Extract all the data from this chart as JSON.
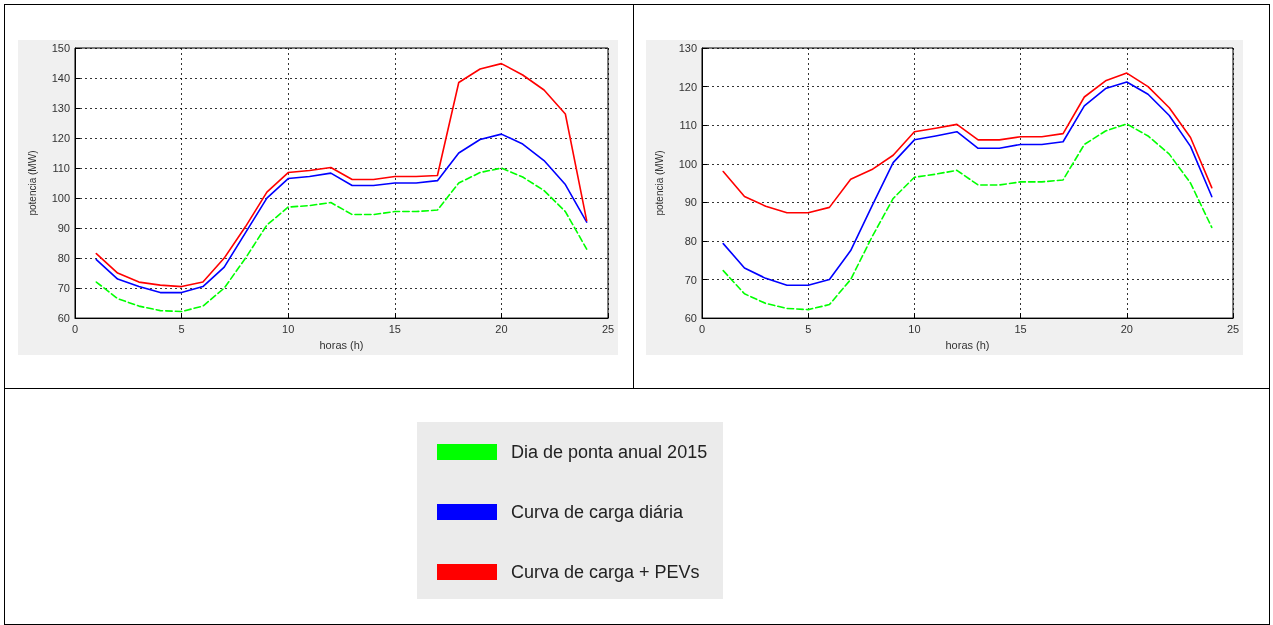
{
  "chart_data": [
    {
      "type": "line",
      "xlabel": "horas (h)",
      "ylabel": "potencia (MW)",
      "x": [
        1,
        2,
        3,
        4,
        5,
        6,
        7,
        8,
        9,
        10,
        11,
        12,
        13,
        14,
        15,
        16,
        17,
        18,
        19,
        20,
        21,
        22,
        23,
        24
      ],
      "xlim": [
        0,
        25
      ],
      "xticks": [
        0,
        5,
        10,
        15,
        20,
        25
      ],
      "ylim": [
        60,
        150
      ],
      "yticks": [
        60,
        70,
        80,
        90,
        100,
        110,
        120,
        130,
        140,
        150
      ],
      "grid": true,
      "legend": "bottom",
      "marker": "none",
      "series": [
        {
          "name": "Dia de ponta anual 2015",
          "color": "#00ff00",
          "line_style": "dashed",
          "values": [
            72,
            66.5,
            64,
            62.5,
            62.2,
            64,
            70,
            80,
            91,
            97,
            97.5,
            98.5,
            94.5,
            94.5,
            95.5,
            95.5,
            96,
            105,
            108.5,
            110,
            107,
            102.5,
            95.5,
            83
          ]
        },
        {
          "name": "Curva de carga diária",
          "color": "#0000ff",
          "line_style": "solid",
          "values": [
            79.5,
            73,
            70.5,
            68.5,
            68.5,
            70.5,
            77,
            88.5,
            100,
            106.5,
            107.2,
            108.3,
            104.2,
            104.2,
            105,
            105,
            105.8,
            115,
            119.5,
            121.3,
            118,
            112.5,
            104.5,
            92
          ]
        },
        {
          "name": "Curva de carga + PEVs",
          "color": "#ff0000",
          "line_style": "solid",
          "values": [
            81.5,
            75,
            72,
            71,
            70.5,
            72,
            80,
            90.5,
            102,
            108.5,
            109.2,
            110.2,
            106.2,
            106.2,
            107.2,
            107.2,
            107.5,
            138.5,
            143,
            144.8,
            141,
            136,
            128,
            92.5
          ]
        }
      ]
    },
    {
      "type": "line",
      "xlabel": "horas (h)",
      "ylabel": "potencia (MW)",
      "x": [
        1,
        2,
        3,
        4,
        5,
        6,
        7,
        8,
        9,
        10,
        11,
        12,
        13,
        14,
        15,
        16,
        17,
        18,
        19,
        20,
        21,
        22,
        23,
        24
      ],
      "xlim": [
        0,
        25
      ],
      "xticks": [
        0,
        5,
        10,
        15,
        20,
        25
      ],
      "ylim": [
        60,
        130
      ],
      "yticks": [
        60,
        70,
        80,
        90,
        100,
        110,
        120,
        130
      ],
      "grid": true,
      "marker": "none",
      "series": [
        {
          "color": "#00ff00",
          "line_style": "dashed",
          "values": [
            72.3,
            66.3,
            63.8,
            62.5,
            62.2,
            63.5,
            70,
            81,
            91,
            96.5,
            97.3,
            98.3,
            94.5,
            94.5,
            95.3,
            95.3,
            95.8,
            105,
            108.5,
            110.3,
            107.2,
            102.5,
            95,
            83.5
          ]
        },
        {
          "color": "#0000ff",
          "line_style": "solid",
          "values": [
            79.3,
            73,
            70.3,
            68.5,
            68.5,
            70,
            77.5,
            89,
            100.3,
            106.2,
            107.2,
            108.3,
            104,
            104,
            105,
            105,
            105.7,
            115,
            119.5,
            121.2,
            118,
            112.5,
            104.5,
            91.5
          ]
        },
        {
          "color": "#ff0000",
          "line_style": "solid",
          "values": [
            98,
            91.5,
            89,
            87.3,
            87.3,
            88.7,
            96,
            98.5,
            102.2,
            108.3,
            109.2,
            110.2,
            106.2,
            106.2,
            107,
            107,
            107.8,
            117.3,
            121.5,
            123.5,
            120,
            114.5,
            106.8,
            93.8
          ]
        }
      ]
    }
  ]
}
